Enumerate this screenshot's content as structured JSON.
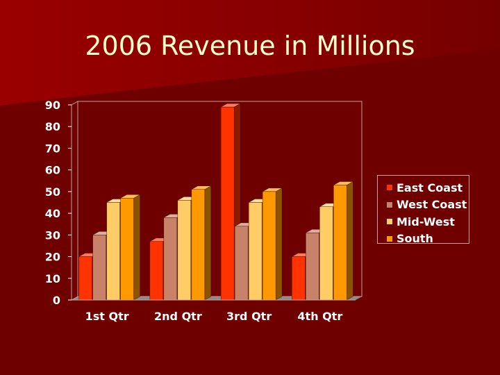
{
  "slide": {
    "title": "2006 Revenue in Millions",
    "background_color": "#6e0000",
    "title_color": "#ffffcc"
  },
  "chart_data": {
    "type": "bar",
    "title": "",
    "xlabel": "",
    "ylabel": "",
    "categories": [
      "1st Qtr",
      "2nd Qtr",
      "3rd Qtr",
      "4th Qtr"
    ],
    "series": [
      {
        "name": "East Coast",
        "color": "#ff3300",
        "values": [
          20,
          27,
          89,
          20
        ]
      },
      {
        "name": "West Coast",
        "color": "#c8826a",
        "values": [
          30,
          38,
          34,
          31
        ]
      },
      {
        "name": "Mid-West",
        "color": "#ffcc66",
        "values": [
          45,
          46,
          45,
          43
        ]
      },
      {
        "name": "South",
        "color": "#ff9900",
        "values": [
          47,
          51,
          50,
          53
        ]
      }
    ],
    "ylim": [
      0,
      90
    ],
    "yticks": [
      "0",
      "10",
      "20",
      "30",
      "40",
      "50",
      "60",
      "70",
      "80",
      "90"
    ],
    "grid": false,
    "legend_position": "right",
    "style": "3d-clustered-column"
  }
}
